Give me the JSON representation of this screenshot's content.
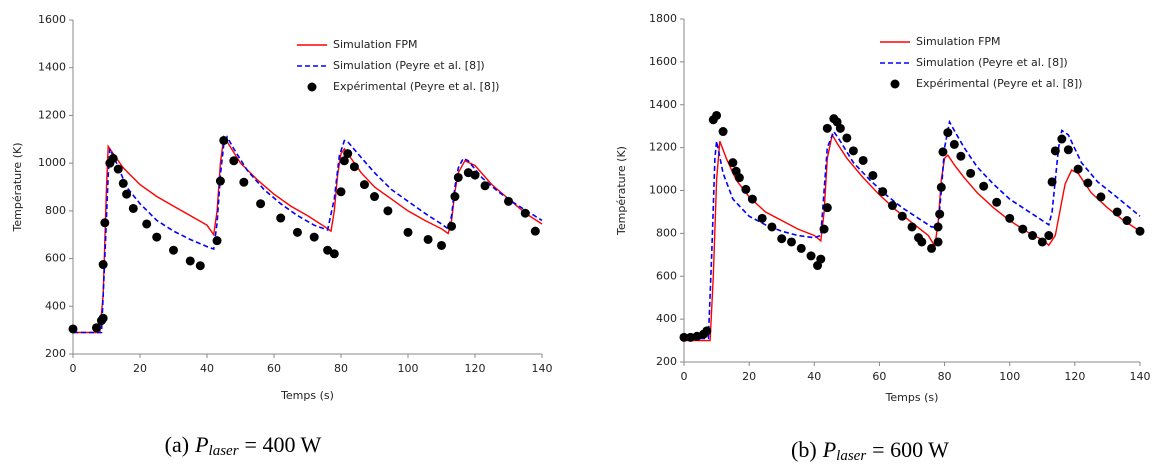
{
  "chart_data": [
    {
      "type": "line",
      "x_label": "Temps (s)",
      "y_label": "Température (K)",
      "xlim": [
        0,
        140
      ],
      "xticks": [
        0,
        20,
        40,
        60,
        80,
        100,
        120,
        140
      ],
      "ylim": [
        200,
        1600
      ],
      "yticks": [
        200,
        400,
        600,
        800,
        1000,
        1200,
        1400,
        1600
      ],
      "grid": false,
      "legend": "upper right",
      "caption": {
        "prefix": "(a)",
        "symbol": "P",
        "subscript": "laser",
        "rest": "= 400 W"
      },
      "series": [
        {
          "name": "Simulation FPM",
          "type": "line",
          "color": "#ff0000",
          "dash": false,
          "x": [
            0,
            8,
            9,
            10,
            10.5,
            12,
            15,
            20,
            25,
            30,
            35,
            40,
            42,
            43,
            44,
            45,
            46,
            50,
            55,
            60,
            65,
            70,
            75,
            77,
            78,
            79,
            80,
            81,
            83,
            86,
            90,
            95,
            100,
            105,
            110,
            112,
            113,
            114,
            115,
            117,
            120,
            125,
            130,
            135,
            140
          ],
          "values": [
            290,
            290,
            450,
            900,
            1070,
            1040,
            980,
            910,
            860,
            820,
            780,
            740,
            700,
            800,
            1000,
            1110,
            1090,
            1000,
            930,
            870,
            820,
            780,
            735,
            715,
            800,
            950,
            1040,
            1060,
            1020,
            960,
            900,
            850,
            800,
            760,
            725,
            705,
            760,
            880,
            960,
            1010,
            990,
            910,
            850,
            790,
            745
          ]
        },
        {
          "name": "Simulation (Peyre et al. [8])",
          "type": "line",
          "color": "#0000ff",
          "dash": true,
          "x": [
            0,
            8.5,
            9.5,
            10.5,
            11,
            13,
            16,
            20,
            25,
            30,
            35,
            40,
            42,
            43,
            44,
            45,
            46,
            48,
            52,
            57,
            62,
            67,
            72,
            76,
            78,
            79.5,
            81,
            82,
            85,
            90,
            95,
            100,
            105,
            110,
            112,
            113,
            114,
            115,
            116.5,
            118,
            122,
            127,
            132,
            136,
            140
          ],
          "values": [
            290,
            290,
            600,
            950,
            1060,
            1000,
            900,
            830,
            760,
            715,
            680,
            650,
            640,
            750,
            950,
            1080,
            1110,
            1060,
            970,
            890,
            830,
            780,
            740,
            720,
            850,
            1030,
            1095,
            1090,
            1040,
            960,
            890,
            840,
            790,
            745,
            725,
            780,
            900,
            980,
            1020,
            1010,
            940,
            880,
            830,
            795,
            760
          ]
        },
        {
          "name": "Expérimental (Peyre et al. [8])",
          "type": "scatter",
          "color": "#000000",
          "dash": false,
          "x": [
            0,
            7,
            8.5,
            9,
            9,
            9.5,
            11,
            12,
            13.5,
            15,
            16,
            18,
            22,
            25,
            30,
            35,
            38,
            43,
            44,
            45,
            48,
            51,
            56,
            62,
            67,
            72,
            76,
            78,
            80,
            81,
            82,
            84,
            87,
            90,
            94,
            100,
            106,
            110,
            113,
            114,
            115,
            118,
            120,
            123,
            130,
            135,
            138
          ],
          "values": [
            305,
            310,
            340,
            350,
            575,
            750,
            1000,
            1020,
            975,
            915,
            870,
            810,
            745,
            690,
            635,
            590,
            570,
            675,
            925,
            1095,
            1010,
            920,
            830,
            770,
            710,
            690,
            635,
            620,
            880,
            1010,
            1040,
            985,
            910,
            860,
            800,
            710,
            680,
            655,
            735,
            860,
            940,
            960,
            950,
            905,
            840,
            790,
            715
          ]
        }
      ]
    },
    {
      "type": "line",
      "x_label": "Temps  (s)",
      "y_label": "Température (K)",
      "xlim": [
        0,
        140
      ],
      "xticks": [
        0,
        20,
        40,
        60,
        80,
        100,
        120,
        140
      ],
      "ylim": [
        200,
        1800
      ],
      "yticks": [
        200,
        400,
        600,
        800,
        1000,
        1200,
        1400,
        1600,
        1800
      ],
      "grid": false,
      "legend": "upper right",
      "caption": {
        "prefix": "(b)",
        "symbol": "P",
        "subscript": "laser",
        "rest": "= 600 W"
      },
      "series": [
        {
          "name": "Simulation FPM",
          "type": "line",
          "color": "#ff0000",
          "dash": false,
          "x": [
            0,
            8,
            9,
            10,
            11,
            13,
            16,
            20,
            25,
            30,
            35,
            40,
            42,
            43,
            44,
            45.5,
            47,
            50,
            55,
            60,
            65,
            70,
            75,
            77,
            78,
            79,
            80,
            81,
            83,
            86,
            90,
            95,
            100,
            105,
            110,
            112,
            114,
            116,
            117,
            119,
            121,
            125,
            130,
            135,
            140
          ],
          "values": [
            300,
            300,
            600,
            1050,
            1230,
            1150,
            1050,
            970,
            900,
            860,
            820,
            790,
            765,
            900,
            1150,
            1260,
            1220,
            1150,
            1060,
            980,
            910,
            850,
            790,
            740,
            850,
            1050,
            1150,
            1165,
            1120,
            1060,
            990,
            920,
            860,
            810,
            770,
            745,
            790,
            950,
            1030,
            1095,
            1080,
            990,
            920,
            860,
            810
          ]
        },
        {
          "name": "Simulation (Peyre et al. [8])",
          "type": "line",
          "color": "#0000ff",
          "dash": true,
          "x": [
            0,
            7.5,
            8.5,
            9.5,
            10,
            12,
            15,
            20,
            25,
            30,
            35,
            40,
            42,
            43,
            44,
            46,
            48,
            52,
            57,
            62,
            67,
            72,
            76,
            78,
            79,
            80,
            81.5,
            83,
            86,
            90,
            95,
            100,
            105,
            110,
            112,
            113,
            114,
            115,
            116,
            118,
            122,
            127,
            132,
            136,
            140
          ],
          "values": [
            310,
            310,
            700,
            1150,
            1230,
            1080,
            960,
            880,
            840,
            810,
            790,
            780,
            790,
            1000,
            1200,
            1275,
            1230,
            1130,
            1050,
            980,
            920,
            870,
            830,
            830,
            1000,
            1200,
            1320,
            1280,
            1200,
            1110,
            1030,
            960,
            910,
            860,
            840,
            900,
            1050,
            1200,
            1280,
            1260,
            1130,
            1040,
            980,
            930,
            880
          ]
        },
        {
          "name": "Expérimental (Peyre et al. [8])",
          "type": "scatter",
          "color": "#000000",
          "dash": false,
          "x": [
            0,
            2,
            4,
            6,
            7,
            9,
            10,
            12,
            15,
            16,
            17,
            19,
            21,
            24,
            27,
            30,
            33,
            36,
            39,
            41,
            42,
            43,
            44,
            44,
            46,
            47,
            48,
            50,
            52,
            55,
            58,
            61,
            64,
            67,
            70,
            72,
            73,
            76,
            78,
            78,
            78.5,
            79,
            79.5,
            81,
            83,
            85,
            88,
            92,
            96,
            100,
            104,
            107,
            110,
            112,
            113,
            114,
            116,
            118,
            121,
            124,
            128,
            133,
            136,
            140
          ],
          "values": [
            315,
            315,
            320,
            330,
            345,
            1330,
            1350,
            1275,
            1130,
            1090,
            1060,
            1005,
            960,
            870,
            830,
            775,
            760,
            730,
            695,
            650,
            680,
            820,
            920,
            1290,
            1335,
            1320,
            1290,
            1245,
            1185,
            1140,
            1070,
            995,
            930,
            880,
            830,
            780,
            760,
            730,
            760,
            830,
            890,
            1015,
            1180,
            1270,
            1215,
            1160,
            1080,
            1020,
            945,
            870,
            820,
            790,
            760,
            790,
            1040,
            1185,
            1240,
            1190,
            1100,
            1035,
            970,
            900,
            860,
            810
          ]
        }
      ]
    }
  ]
}
